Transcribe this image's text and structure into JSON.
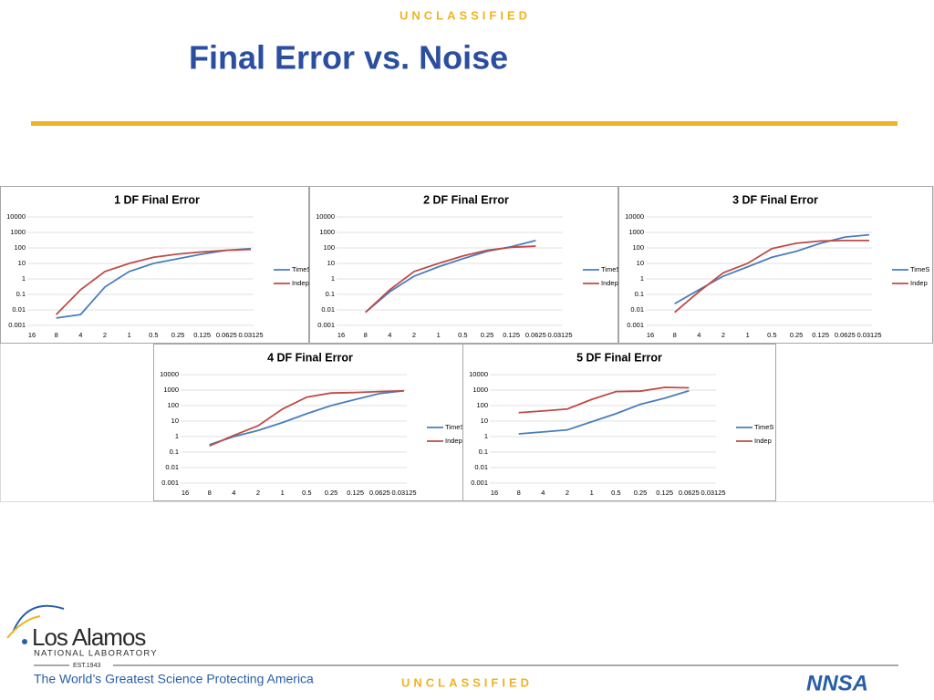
{
  "slide": {
    "header": "UNCLASSIFIED",
    "title": "Final Error vs. Noise",
    "footer": "UNCLASSIFIED",
    "logo_name": "Los Alamos",
    "logo_sub": "NATIONAL LABORATORY",
    "logo_est": "EST.1943",
    "tagline": "The World’s Greatest Science Protecting America",
    "agency": "NNSA"
  },
  "chart_data": [
    {
      "type": "line",
      "title": "1 DF Final Error",
      "log_y": true,
      "grid": true,
      "legend": "right",
      "categories": [
        "16",
        "8",
        "4",
        "2",
        "1",
        "0.5",
        "0.25",
        "0.125",
        "0.0625",
        "0.03125"
      ],
      "ylim": [
        0.001,
        10000
      ],
      "yticks": [
        0.001,
        0.01,
        0.1,
        1,
        10,
        100,
        1000,
        10000
      ],
      "series": [
        {
          "name": "TimeS",
          "color": "#4a7ebb",
          "values": [
            null,
            0.003,
            0.005,
            0.3,
            3,
            10,
            20,
            40,
            70,
            90
          ]
        },
        {
          "name": "Indep",
          "color": "#be4b48",
          "values": [
            null,
            0.005,
            0.2,
            3,
            10,
            25,
            40,
            55,
            70,
            80
          ]
        }
      ]
    },
    {
      "type": "line",
      "title": "2 DF Final Error",
      "log_y": true,
      "grid": true,
      "legend": "right",
      "categories": [
        "16",
        "8",
        "4",
        "2",
        "1",
        "0.5",
        "0.25",
        "0.125",
        "0.0625",
        "0.03125"
      ],
      "ylim": [
        0.001,
        10000
      ],
      "yticks": [
        0.001,
        0.01,
        0.1,
        1,
        10,
        100,
        1000,
        10000
      ],
      "series": [
        {
          "name": "TimeS",
          "color": "#4a7ebb",
          "values": [
            null,
            0.007,
            0.15,
            1.5,
            6,
            20,
            60,
            120,
            300,
            null
          ]
        },
        {
          "name": "Indep",
          "color": "#be4b48",
          "values": [
            null,
            0.007,
            0.2,
            3,
            10,
            30,
            70,
            110,
            130,
            null
          ]
        }
      ]
    },
    {
      "type": "line",
      "title": "3 DF Final Error",
      "log_y": true,
      "grid": true,
      "legend": "right",
      "categories": [
        "16",
        "8",
        "4",
        "2",
        "1",
        "0.5",
        "0.25",
        "0.125",
        "0.0625",
        "0.03125"
      ],
      "ylim": [
        0.001,
        10000
      ],
      "yticks": [
        0.001,
        0.01,
        0.1,
        1,
        10,
        100,
        1000,
        10000
      ],
      "series": [
        {
          "name": "TimeS",
          "color": "#4a7ebb",
          "values": [
            null,
            0.025,
            0.2,
            1.5,
            6,
            25,
            60,
            200,
            500,
            700
          ]
        },
        {
          "name": "Indep",
          "color": "#be4b48",
          "values": [
            null,
            0.007,
            0.15,
            2.5,
            10,
            90,
            200,
            280,
            300,
            300
          ]
        }
      ]
    },
    {
      "type": "line",
      "title": "4 DF Final Error",
      "log_y": true,
      "grid": true,
      "legend": "right",
      "categories": [
        "16",
        "8",
        "4",
        "2",
        "1",
        "0.5",
        "0.25",
        "0.125",
        "0.0625",
        "0.03125"
      ],
      "ylim": [
        0.001,
        10000
      ],
      "yticks": [
        0.001,
        0.01,
        0.1,
        1,
        10,
        100,
        1000,
        10000
      ],
      "series": [
        {
          "name": "TimeS",
          "color": "#4a7ebb",
          "values": [
            null,
            0.3,
            1,
            2.5,
            8,
            30,
            100,
            250,
            600,
            900
          ]
        },
        {
          "name": "Indep",
          "color": "#be4b48",
          "values": [
            null,
            0.25,
            1.2,
            5,
            60,
            350,
            650,
            700,
            800,
            900
          ]
        }
      ]
    },
    {
      "type": "line",
      "title": "5 DF Final Error",
      "log_y": true,
      "grid": true,
      "legend": "right",
      "categories": [
        "16",
        "8",
        "4",
        "2",
        "1",
        "0.5",
        "0.25",
        "0.125",
        "0.0625",
        "0.03125"
      ],
      "ylim": [
        0.001,
        10000
      ],
      "yticks": [
        0.001,
        0.01,
        0.1,
        1,
        10,
        100,
        1000,
        10000
      ],
      "series": [
        {
          "name": "TimeS",
          "color": "#4a7ebb",
          "values": [
            null,
            1.5,
            2,
            2.7,
            9,
            30,
            120,
            300,
            900,
            null
          ]
        },
        {
          "name": "Indep",
          "color": "#be4b48",
          "values": [
            null,
            35,
            45,
            60,
            250,
            800,
            850,
            1500,
            1400,
            null
          ]
        }
      ]
    }
  ]
}
